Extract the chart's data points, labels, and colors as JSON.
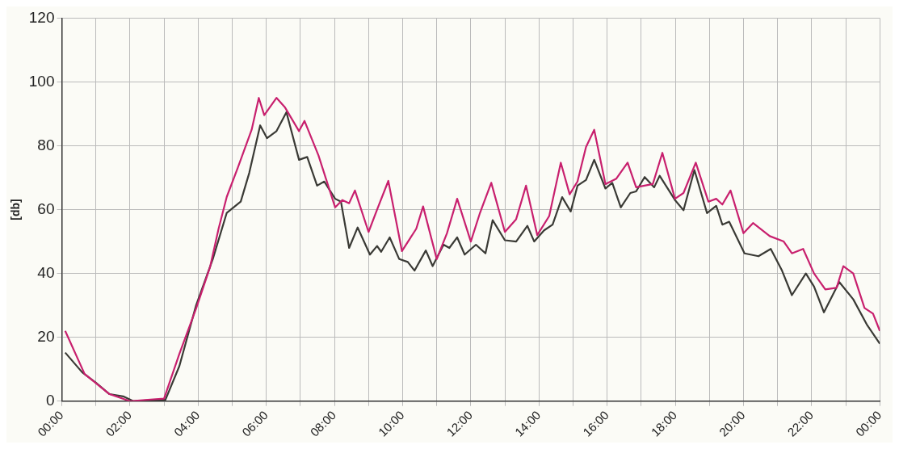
{
  "chart_data": {
    "type": "line",
    "ylabel": "[db]",
    "xlim": [
      0,
      24
    ],
    "ylim": [
      0,
      120
    ],
    "xticks": [
      {
        "value": 0,
        "label": "00:00"
      },
      {
        "value": 1,
        "label": null
      },
      {
        "value": 2,
        "label": "02:00"
      },
      {
        "value": 3,
        "label": null
      },
      {
        "value": 4,
        "label": "04:00"
      },
      {
        "value": 5,
        "label": null
      },
      {
        "value": 6,
        "label": "06:00"
      },
      {
        "value": 7,
        "label": null
      },
      {
        "value": 8,
        "label": "08:00"
      },
      {
        "value": 9,
        "label": null
      },
      {
        "value": 10,
        "label": "10:00"
      },
      {
        "value": 11,
        "label": null
      },
      {
        "value": 12,
        "label": "12:00"
      },
      {
        "value": 13,
        "label": null
      },
      {
        "value": 14,
        "label": "14:00"
      },
      {
        "value": 15,
        "label": null
      },
      {
        "value": 16,
        "label": "16:00"
      },
      {
        "value": 17,
        "label": null
      },
      {
        "value": 18,
        "label": "18:00"
      },
      {
        "value": 19,
        "label": null
      },
      {
        "value": 20,
        "label": "20:00"
      },
      {
        "value": 21,
        "label": null
      },
      {
        "value": 22,
        "label": "22:00"
      },
      {
        "value": 23,
        "label": null
      },
      {
        "value": 24,
        "label": "00:00"
      }
    ],
    "yticks": [
      0,
      20,
      40,
      60,
      80,
      100,
      120
    ],
    "grid": true,
    "legend": false,
    "marker": "none",
    "line_style": "solid",
    "series": [
      {
        "color": "#c8206e",
        "x": [
          0.1,
          0.67,
          1.4,
          2.0,
          2.6,
          3.0,
          3.45,
          3.94,
          4.35,
          4.6,
          4.84,
          5.16,
          5.57,
          5.78,
          5.94,
          6.3,
          6.55,
          6.96,
          7.12,
          7.53,
          8.02,
          8.23,
          8.43,
          8.6,
          9.0,
          9.25,
          9.58,
          9.98,
          10.4,
          10.6,
          11.0,
          11.3,
          11.6,
          12.0,
          12.27,
          12.6,
          13.0,
          13.33,
          13.62,
          13.95,
          14.3,
          14.64,
          14.9,
          15.13,
          15.38,
          15.62,
          15.95,
          16.27,
          16.6,
          16.85,
          17.34,
          17.62,
          17.99,
          18.24,
          18.6,
          18.97,
          19.2,
          19.38,
          19.62,
          20.0,
          20.28,
          20.77,
          21.18,
          21.42,
          21.75,
          22.07,
          22.4,
          22.73,
          22.93,
          23.22,
          23.55,
          23.8,
          24.0
        ],
        "values": [
          22,
          8.5,
          2.2,
          0,
          0.5,
          0.8,
          14.8,
          29,
          42,
          54,
          64,
          73,
          85,
          95,
          89.6,
          95,
          92,
          84.6,
          87.8,
          77,
          60.7,
          63,
          62,
          66,
          53,
          60,
          69,
          47,
          54,
          61,
          44.5,
          52.6,
          63.4,
          50,
          59,
          68.4,
          53,
          57,
          67.5,
          52,
          58,
          74.7,
          64.8,
          68.8,
          79.6,
          85,
          68,
          69.7,
          74.7,
          67,
          68,
          77.8,
          63.4,
          65.2,
          74.7,
          62.5,
          63.4,
          61.6,
          66,
          52.6,
          55.8,
          51.7,
          50,
          46.3,
          47.7,
          40,
          35,
          35.5,
          42.3,
          40,
          29.2,
          27.4,
          22
        ]
      },
      {
        "color": "#3a3a35",
        "x": [
          0.1,
          0.6,
          1.0,
          1.4,
          1.8,
          2.1,
          2.8,
          3.04,
          3.45,
          3.94,
          4.43,
          4.84,
          5.25,
          5.5,
          5.82,
          6.02,
          6.3,
          6.59,
          6.96,
          7.2,
          7.49,
          7.7,
          8.02,
          8.19,
          8.43,
          8.68,
          9.04,
          9.25,
          9.37,
          9.62,
          9.9,
          10.15,
          10.35,
          10.68,
          10.88,
          11.2,
          11.37,
          11.6,
          11.82,
          12.15,
          12.43,
          12.64,
          13.0,
          13.33,
          13.66,
          13.86,
          14.15,
          14.4,
          14.68,
          14.93,
          15.13,
          15.38,
          15.62,
          15.95,
          16.15,
          16.4,
          16.68,
          16.85,
          17.1,
          17.38,
          17.54,
          17.99,
          18.24,
          18.56,
          18.93,
          19.2,
          19.38,
          19.58,
          20.03,
          20.44,
          20.8,
          21.13,
          21.42,
          21.83,
          22.07,
          22.36,
          22.81,
          23.22,
          23.63,
          24.0
        ],
        "values": [
          15.2,
          9,
          5.8,
          2.2,
          1.5,
          0,
          0.4,
          0.4,
          11,
          30,
          44.5,
          59,
          62.5,
          71.5,
          86.4,
          82.4,
          84.6,
          90.5,
          75.6,
          76.5,
          67.5,
          68.8,
          63.4,
          62.5,
          48,
          54.4,
          45.9,
          48.6,
          46.8,
          51.3,
          44.5,
          43.6,
          40.9,
          47.2,
          42.3,
          49,
          48,
          51.3,
          45.9,
          49,
          46.3,
          56.7,
          50.4,
          50,
          54.9,
          50,
          53.5,
          55.3,
          63.9,
          59.4,
          67.5,
          69.3,
          75.6,
          66.6,
          68.4,
          60.7,
          65.2,
          65.7,
          70.2,
          67,
          70.6,
          63,
          59.8,
          72.4,
          58.9,
          61.2,
          55.3,
          56.2,
          46.3,
          45.4,
          47.7,
          40.9,
          33.2,
          40,
          35.9,
          27.8,
          37.3,
          31.9,
          23.8,
          18
        ]
      }
    ]
  }
}
